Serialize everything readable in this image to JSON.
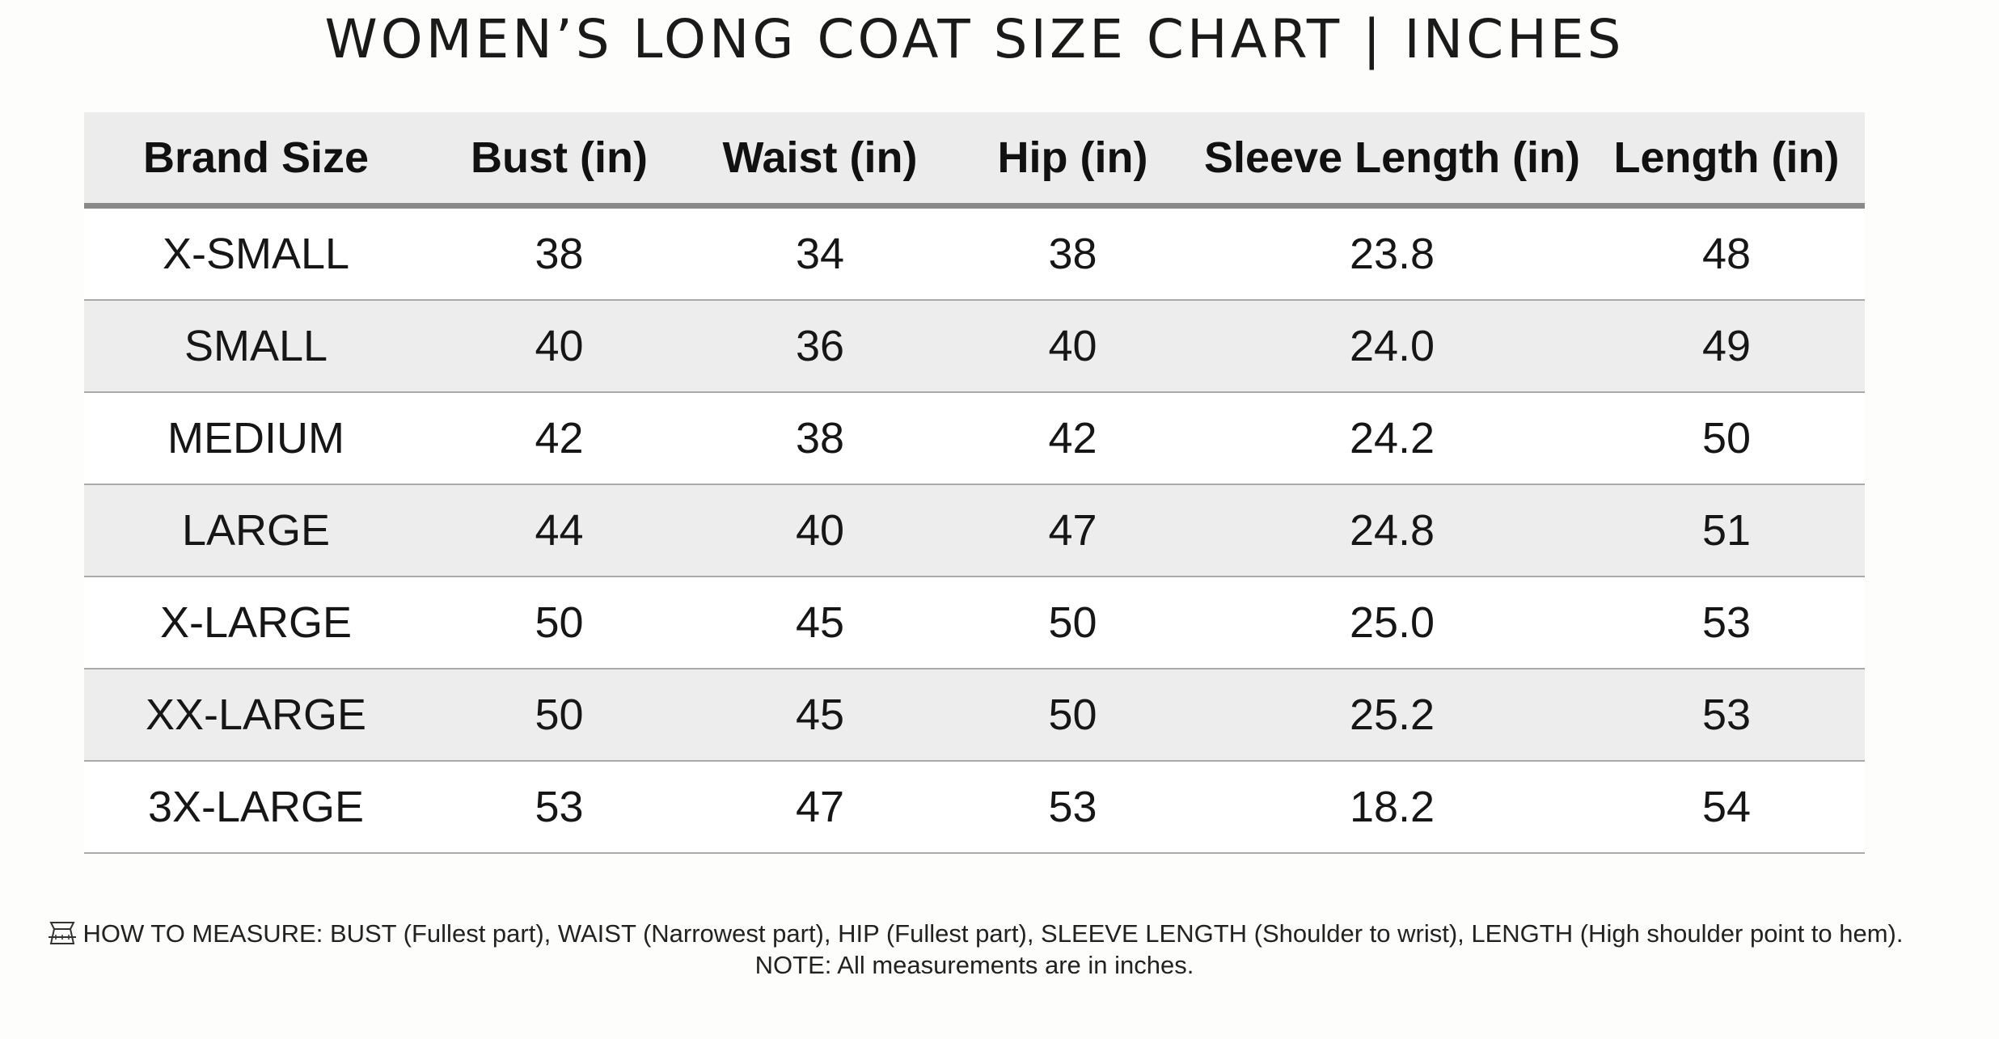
{
  "title": "WOMEN’S LONG COAT SIZE CHART | INCHES",
  "chart_data": {
    "type": "table",
    "title": "WOMEN’S LONG COAT SIZE CHART | INCHES",
    "columns": [
      "Brand Size",
      "Bust (in)",
      "Waist (in)",
      "Hip (in)",
      "Sleeve Length (in)",
      "Length (in)"
    ],
    "rows": [
      [
        "X-SMALL",
        "38",
        "34",
        "38",
        "23.8",
        "48"
      ],
      [
        "SMALL",
        "40",
        "36",
        "40",
        "24.0",
        "49"
      ],
      [
        "MEDIUM",
        "42",
        "38",
        "42",
        "24.2",
        "50"
      ],
      [
        "LARGE",
        "44",
        "40",
        "47",
        "24.8",
        "51"
      ],
      [
        "X-LARGE",
        "50",
        "45",
        "50",
        "25.0",
        "53"
      ],
      [
        "XX-LARGE",
        "50",
        "45",
        "50",
        "25.2",
        "53"
      ],
      [
        "3X-LARGE",
        "53",
        "47",
        "53",
        "18.2",
        "54"
      ]
    ]
  },
  "footer": {
    "icon": "measuring-tape-icon",
    "how_to_measure": "HOW TO MEASURE: BUST (Fullest part), WAIST (Narrowest part), HIP (Fullest part), SLEEVE LENGTH (Shoulder to wrist), LENGTH (High shoulder point to hem).",
    "note": "NOTE: All measurements are in inches."
  },
  "colors": {
    "header_bg": "#ececec",
    "stripe_bg": "#ededed",
    "header_rule": "#8a8a8a",
    "row_rule": "#a9a9a9"
  }
}
